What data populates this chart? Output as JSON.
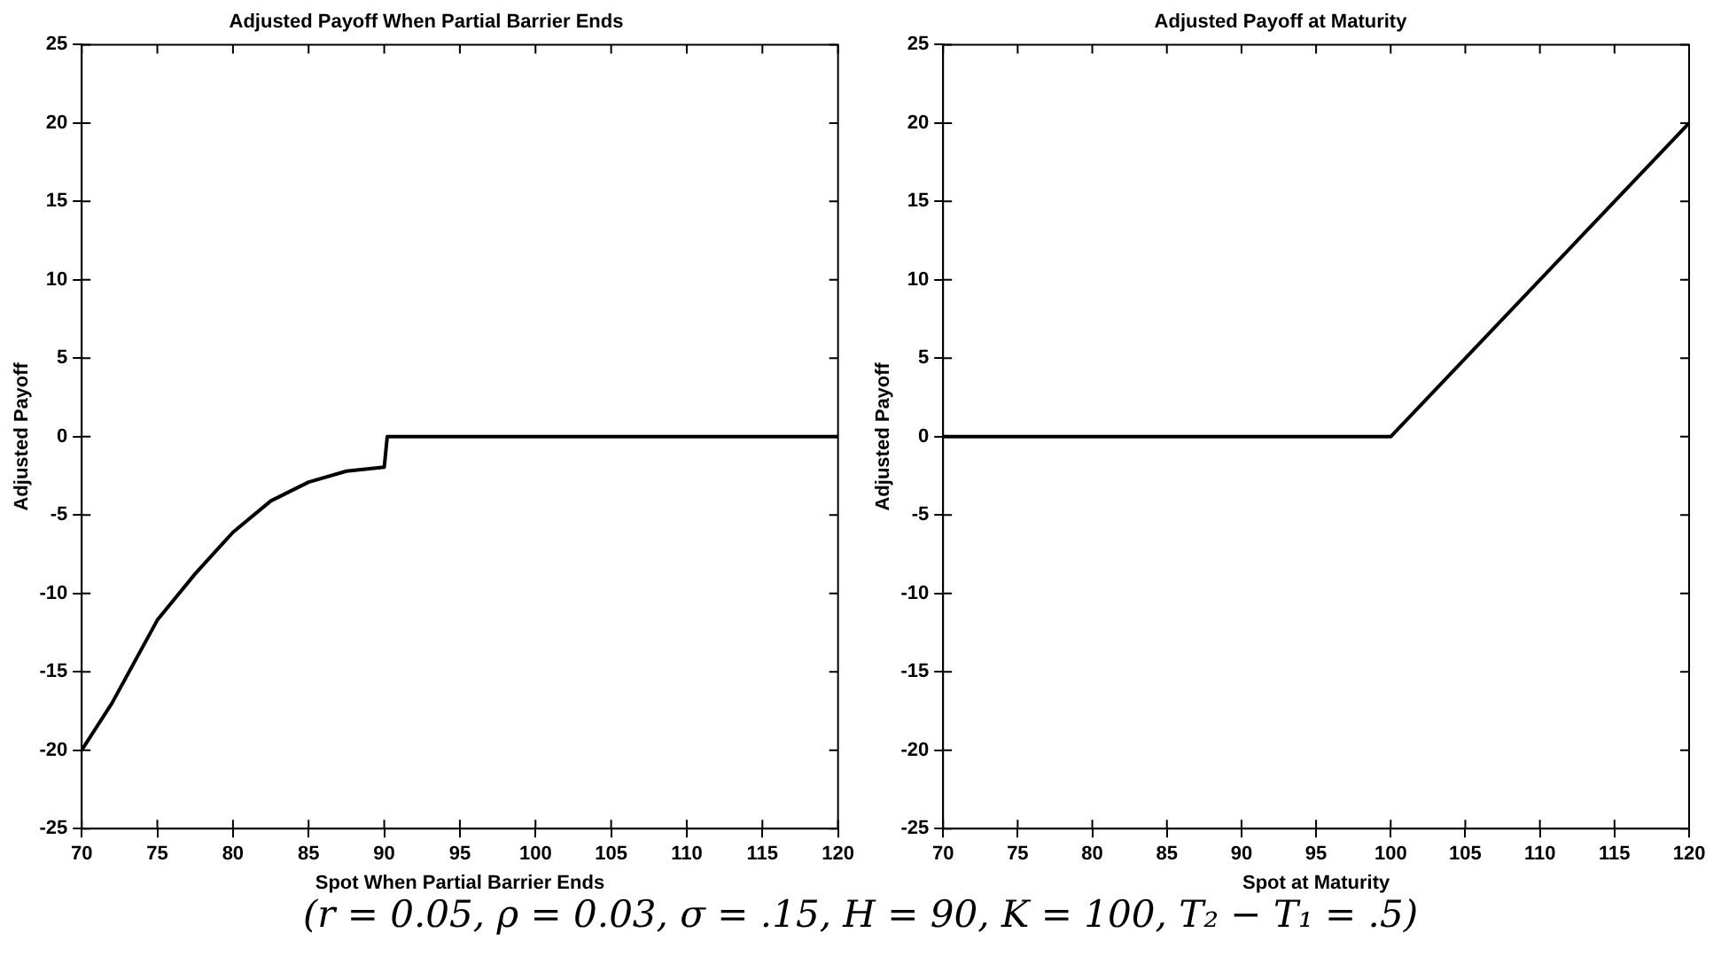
{
  "chart_data": [
    {
      "type": "line",
      "title": "Adjusted Payoff When Partial Barrier Ends",
      "xlabel": "Spot When Partial Barrier Ends",
      "ylabel": "Adjusted Payoff",
      "series": [
        {
          "color": "#000000",
          "x": [
            70,
            72,
            75,
            77.5,
            80,
            82.5,
            85,
            87.5,
            90,
            90.2,
            120
          ],
          "values": [
            -20,
            -17,
            -11.7,
            -8.75,
            -6.1,
            -4.1,
            -2.9,
            -2.2,
            -1.95,
            0,
            0
          ]
        }
      ],
      "xlim": [
        70,
        120
      ],
      "xticks": [
        70,
        75,
        80,
        85,
        90,
        95,
        100,
        105,
        110,
        115,
        120
      ],
      "ylim": [
        -25,
        25
      ],
      "yticks": [
        -25,
        -20,
        -15,
        -10,
        -5,
        0,
        5,
        10,
        15,
        20,
        25
      ],
      "annotations": [
        "(r = 0.05, ρ = 0.03, σ = .15, H = 90, K = 100, T₂ − T₁ = .5)"
      ]
    },
    {
      "type": "line",
      "title": "Adjusted Payoff at Maturity",
      "xlabel": "Spot at Maturity",
      "ylabel": "Adjusted Payoff",
      "series": [
        {
          "color": "#000000",
          "x": [
            70,
            100,
            120
          ],
          "values": [
            0,
            0,
            20
          ]
        }
      ],
      "xlim": [
        70,
        120
      ],
      "xticks": [
        70,
        75,
        80,
        85,
        90,
        95,
        100,
        105,
        110,
        115,
        120
      ],
      "ylim": [
        -25,
        25
      ],
      "yticks": [
        -25,
        -20,
        -15,
        -10,
        -5,
        0,
        5,
        10,
        15,
        20,
        25
      ]
    }
  ]
}
